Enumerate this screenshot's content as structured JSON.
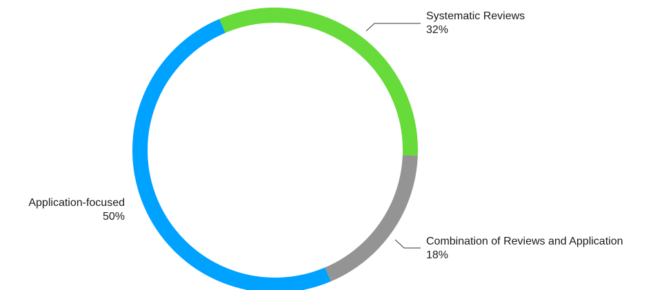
{
  "chart_data": {
    "type": "pie",
    "style": "donut",
    "slices": [
      {
        "label": "Systematic Reviews",
        "value": 32,
        "value_label": "32%",
        "color": "#66DB3A"
      },
      {
        "label": "Combination of Reviews and Application",
        "value": 18,
        "value_label": "18%",
        "color": "#949494"
      },
      {
        "label": "Application-focused",
        "value": 50,
        "value_label": "50%",
        "color": "#00A2FF"
      }
    ]
  }
}
